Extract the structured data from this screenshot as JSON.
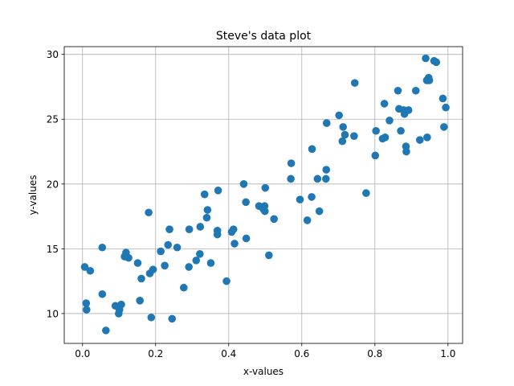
{
  "chart_data": {
    "type": "scatter",
    "title": "Steve's data plot",
    "xlabel": "x-values",
    "ylabel": "y-values",
    "xlim": [
      -0.05,
      1.04
    ],
    "ylim": [
      7.7,
      30.6
    ],
    "x_ticks": [
      0.0,
      0.2,
      0.4,
      0.6,
      0.8,
      1.0
    ],
    "x_tick_labels": [
      "0.0",
      "0.2",
      "0.4",
      "0.6",
      "0.8",
      "1.0"
    ],
    "y_ticks": [
      10,
      15,
      20,
      25,
      30
    ],
    "y_tick_labels": [
      "10",
      "15",
      "20",
      "25",
      "30"
    ],
    "grid": true,
    "marker_color": "#1f77b4",
    "points": [
      {
        "x": 0.006,
        "y": 13.6
      },
      {
        "x": 0.01,
        "y": 10.8
      },
      {
        "x": 0.011,
        "y": 10.3
      },
      {
        "x": 0.021,
        "y": 13.3
      },
      {
        "x": 0.054,
        "y": 15.1
      },
      {
        "x": 0.054,
        "y": 11.5
      },
      {
        "x": 0.064,
        "y": 8.7
      },
      {
        "x": 0.09,
        "y": 10.6
      },
      {
        "x": 0.099,
        "y": 10.0
      },
      {
        "x": 0.101,
        "y": 10.3
      },
      {
        "x": 0.106,
        "y": 10.7
      },
      {
        "x": 0.115,
        "y": 14.4
      },
      {
        "x": 0.119,
        "y": 14.7
      },
      {
        "x": 0.126,
        "y": 14.3
      },
      {
        "x": 0.151,
        "y": 13.9
      },
      {
        "x": 0.157,
        "y": 11.0
      },
      {
        "x": 0.161,
        "y": 12.7
      },
      {
        "x": 0.181,
        "y": 17.8
      },
      {
        "x": 0.184,
        "y": 13.1
      },
      {
        "x": 0.188,
        "y": 9.7
      },
      {
        "x": 0.193,
        "y": 13.4
      },
      {
        "x": 0.214,
        "y": 14.8
      },
      {
        "x": 0.225,
        "y": 13.7
      },
      {
        "x": 0.234,
        "y": 15.3
      },
      {
        "x": 0.238,
        "y": 16.5
      },
      {
        "x": 0.245,
        "y": 9.6
      },
      {
        "x": 0.259,
        "y": 15.1
      },
      {
        "x": 0.277,
        "y": 12.0
      },
      {
        "x": 0.291,
        "y": 13.6
      },
      {
        "x": 0.292,
        "y": 16.5
      },
      {
        "x": 0.311,
        "y": 14.1
      },
      {
        "x": 0.321,
        "y": 14.6
      },
      {
        "x": 0.322,
        "y": 16.7
      },
      {
        "x": 0.334,
        "y": 19.2
      },
      {
        "x": 0.34,
        "y": 17.4
      },
      {
        "x": 0.342,
        "y": 18.0
      },
      {
        "x": 0.351,
        "y": 13.9
      },
      {
        "x": 0.369,
        "y": 16.4
      },
      {
        "x": 0.369,
        "y": 16.1
      },
      {
        "x": 0.371,
        "y": 19.5
      },
      {
        "x": 0.394,
        "y": 12.5
      },
      {
        "x": 0.408,
        "y": 16.3
      },
      {
        "x": 0.413,
        "y": 16.5
      },
      {
        "x": 0.416,
        "y": 15.4
      },
      {
        "x": 0.441,
        "y": 20.0
      },
      {
        "x": 0.447,
        "y": 18.6
      },
      {
        "x": 0.448,
        "y": 15.8
      },
      {
        "x": 0.483,
        "y": 18.3
      },
      {
        "x": 0.494,
        "y": 18.1
      },
      {
        "x": 0.498,
        "y": 18.3
      },
      {
        "x": 0.499,
        "y": 17.9
      },
      {
        "x": 0.5,
        "y": 19.7
      },
      {
        "x": 0.51,
        "y": 14.5
      },
      {
        "x": 0.524,
        "y": 17.3
      },
      {
        "x": 0.57,
        "y": 20.4
      },
      {
        "x": 0.571,
        "y": 21.6
      },
      {
        "x": 0.595,
        "y": 18.8
      },
      {
        "x": 0.615,
        "y": 17.2
      },
      {
        "x": 0.627,
        "y": 19.0
      },
      {
        "x": 0.628,
        "y": 22.7
      },
      {
        "x": 0.643,
        "y": 20.4
      },
      {
        "x": 0.648,
        "y": 17.9
      },
      {
        "x": 0.666,
        "y": 20.4
      },
      {
        "x": 0.667,
        "y": 21.1
      },
      {
        "x": 0.668,
        "y": 24.7
      },
      {
        "x": 0.702,
        "y": 25.3
      },
      {
        "x": 0.711,
        "y": 23.3
      },
      {
        "x": 0.713,
        "y": 24.4
      },
      {
        "x": 0.718,
        "y": 23.8
      },
      {
        "x": 0.743,
        "y": 23.7
      },
      {
        "x": 0.745,
        "y": 27.8
      },
      {
        "x": 0.776,
        "y": 19.3
      },
      {
        "x": 0.801,
        "y": 22.2
      },
      {
        "x": 0.803,
        "y": 24.1
      },
      {
        "x": 0.821,
        "y": 23.5
      },
      {
        "x": 0.826,
        "y": 26.2
      },
      {
        "x": 0.828,
        "y": 23.6
      },
      {
        "x": 0.84,
        "y": 24.9
      },
      {
        "x": 0.863,
        "y": 27.2
      },
      {
        "x": 0.866,
        "y": 25.8
      },
      {
        "x": 0.871,
        "y": 24.1
      },
      {
        "x": 0.879,
        "y": 25.7
      },
      {
        "x": 0.881,
        "y": 25.4
      },
      {
        "x": 0.885,
        "y": 22.9
      },
      {
        "x": 0.886,
        "y": 22.5
      },
      {
        "x": 0.892,
        "y": 25.7
      },
      {
        "x": 0.912,
        "y": 27.2
      },
      {
        "x": 0.923,
        "y": 23.4
      },
      {
        "x": 0.939,
        "y": 29.7
      },
      {
        "x": 0.942,
        "y": 28.0
      },
      {
        "x": 0.943,
        "y": 23.6
      },
      {
        "x": 0.947,
        "y": 28.2
      },
      {
        "x": 0.949,
        "y": 28.0
      },
      {
        "x": 0.962,
        "y": 29.5
      },
      {
        "x": 0.968,
        "y": 29.4
      },
      {
        "x": 0.986,
        "y": 26.6
      },
      {
        "x": 0.989,
        "y": 24.4
      },
      {
        "x": 0.994,
        "y": 25.9
      }
    ]
  }
}
